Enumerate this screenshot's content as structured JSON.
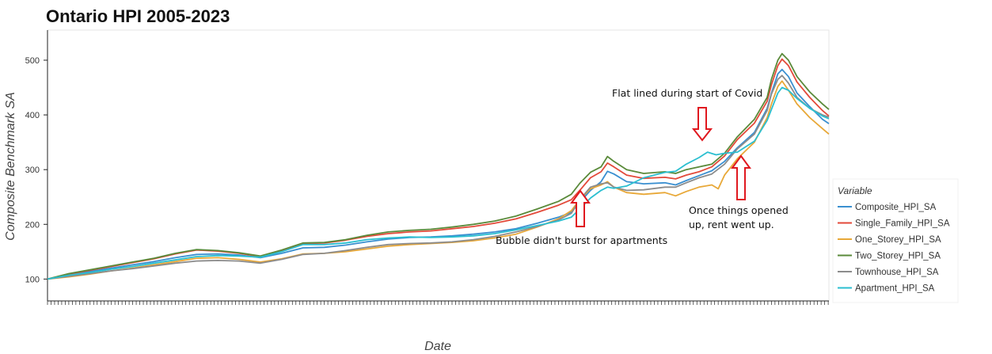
{
  "chart_data": {
    "type": "line",
    "title": "Ontario HPI 2005-2023",
    "xlabel": "Date",
    "ylabel": "Composite Benchmark SA",
    "xlim": [
      2005.0,
      2023.35
    ],
    "ylim": [
      60,
      555
    ],
    "yticks": [
      100,
      200,
      300,
      400,
      500
    ],
    "grid": false,
    "legend": {
      "title": "Variable",
      "placement": "right"
    },
    "series": [
      {
        "name": "Composite_HPI_SA",
        "color": "#3a8fd0",
        "points": [
          [
            2005.0,
            100
          ],
          [
            2005.5,
            108
          ],
          [
            2006.0,
            114
          ],
          [
            2006.5,
            120
          ],
          [
            2007.0,
            126
          ],
          [
            2007.5,
            132
          ],
          [
            2008.0,
            139
          ],
          [
            2008.5,
            145
          ],
          [
            2009.0,
            146
          ],
          [
            2009.5,
            144
          ],
          [
            2010.0,
            139
          ],
          [
            2010.5,
            147
          ],
          [
            2011.0,
            157
          ],
          [
            2011.5,
            158
          ],
          [
            2012.0,
            162
          ],
          [
            2012.5,
            168
          ],
          [
            2013.0,
            173
          ],
          [
            2013.5,
            176
          ],
          [
            2014.0,
            177
          ],
          [
            2014.5,
            179
          ],
          [
            2015.0,
            182
          ],
          [
            2015.5,
            186
          ],
          [
            2016.0,
            192
          ],
          [
            2016.5,
            202
          ],
          [
            2017.0,
            213
          ],
          [
            2017.3,
            222
          ],
          [
            2017.5,
            240
          ],
          [
            2017.75,
            262
          ],
          [
            2018.0,
            278
          ],
          [
            2018.15,
            297
          ],
          [
            2018.3,
            292
          ],
          [
            2018.6,
            278
          ],
          [
            2019.0,
            274
          ],
          [
            2019.5,
            276
          ],
          [
            2019.75,
            272
          ],
          [
            2020.0,
            280
          ],
          [
            2020.3,
            289
          ],
          [
            2020.6,
            298
          ],
          [
            2020.9,
            315
          ],
          [
            2021.2,
            340
          ],
          [
            2021.6,
            368
          ],
          [
            2021.9,
            412
          ],
          [
            2022.0,
            440
          ],
          [
            2022.15,
            475
          ],
          [
            2022.25,
            483
          ],
          [
            2022.4,
            470
          ],
          [
            2022.6,
            440
          ],
          [
            2022.9,
            415
          ],
          [
            2023.2,
            392
          ],
          [
            2023.35,
            384
          ]
        ]
      },
      {
        "name": "Single_Family_HPI_SA",
        "color": "#e34a3a",
        "points": [
          [
            2005.0,
            100
          ],
          [
            2005.5,
            109
          ],
          [
            2006.0,
            116
          ],
          [
            2006.5,
            123
          ],
          [
            2007.0,
            130
          ],
          [
            2007.5,
            137
          ],
          [
            2008.0,
            146
          ],
          [
            2008.5,
            153
          ],
          [
            2009.0,
            151
          ],
          [
            2009.5,
            147
          ],
          [
            2010.0,
            141
          ],
          [
            2010.5,
            152
          ],
          [
            2011.0,
            165
          ],
          [
            2011.5,
            166
          ],
          [
            2012.0,
            171
          ],
          [
            2012.5,
            178
          ],
          [
            2013.0,
            183
          ],
          [
            2013.5,
            186
          ],
          [
            2014.0,
            188
          ],
          [
            2014.5,
            192
          ],
          [
            2015.0,
            196
          ],
          [
            2015.5,
            202
          ],
          [
            2016.0,
            210
          ],
          [
            2016.5,
            222
          ],
          [
            2017.0,
            235
          ],
          [
            2017.3,
            245
          ],
          [
            2017.5,
            262
          ],
          [
            2017.75,
            285
          ],
          [
            2018.0,
            296
          ],
          [
            2018.15,
            312
          ],
          [
            2018.3,
            305
          ],
          [
            2018.6,
            290
          ],
          [
            2019.0,
            284
          ],
          [
            2019.5,
            286
          ],
          [
            2019.75,
            283
          ],
          [
            2020.0,
            290
          ],
          [
            2020.3,
            296
          ],
          [
            2020.6,
            305
          ],
          [
            2020.9,
            325
          ],
          [
            2021.2,
            355
          ],
          [
            2021.6,
            385
          ],
          [
            2021.9,
            425
          ],
          [
            2022.0,
            455
          ],
          [
            2022.15,
            490
          ],
          [
            2022.25,
            502
          ],
          [
            2022.4,
            490
          ],
          [
            2022.6,
            460
          ],
          [
            2022.9,
            432
          ],
          [
            2023.2,
            408
          ],
          [
            2023.35,
            398
          ]
        ]
      },
      {
        "name": "One_Storey_HPI_SA",
        "color": "#e8a838",
        "points": [
          [
            2005.0,
            100
          ],
          [
            2005.5,
            104
          ],
          [
            2006.0,
            109
          ],
          [
            2006.5,
            115
          ],
          [
            2007.0,
            120
          ],
          [
            2007.5,
            126
          ],
          [
            2008.0,
            132
          ],
          [
            2008.5,
            138
          ],
          [
            2009.0,
            139
          ],
          [
            2009.5,
            136
          ],
          [
            2010.0,
            131
          ],
          [
            2010.5,
            137
          ],
          [
            2011.0,
            146
          ],
          [
            2011.5,
            147
          ],
          [
            2012.0,
            150
          ],
          [
            2012.5,
            155
          ],
          [
            2013.0,
            160
          ],
          [
            2013.5,
            163
          ],
          [
            2014.0,
            165
          ],
          [
            2014.5,
            167
          ],
          [
            2015.0,
            170
          ],
          [
            2015.5,
            175
          ],
          [
            2016.0,
            182
          ],
          [
            2016.5,
            195
          ],
          [
            2017.0,
            210
          ],
          [
            2017.3,
            225
          ],
          [
            2017.5,
            245
          ],
          [
            2017.75,
            265
          ],
          [
            2018.0,
            272
          ],
          [
            2018.15,
            278
          ],
          [
            2018.3,
            268
          ],
          [
            2018.6,
            258
          ],
          [
            2019.0,
            255
          ],
          [
            2019.5,
            258
          ],
          [
            2019.75,
            252
          ],
          [
            2020.0,
            260
          ],
          [
            2020.3,
            268
          ],
          [
            2020.6,
            272
          ],
          [
            2020.75,
            265
          ],
          [
            2020.9,
            290
          ],
          [
            2021.2,
            320
          ],
          [
            2021.6,
            350
          ],
          [
            2021.9,
            395
          ],
          [
            2022.0,
            420
          ],
          [
            2022.15,
            452
          ],
          [
            2022.25,
            462
          ],
          [
            2022.4,
            445
          ],
          [
            2022.6,
            420
          ],
          [
            2022.9,
            395
          ],
          [
            2023.2,
            375
          ],
          [
            2023.35,
            365
          ]
        ]
      },
      {
        "name": "Two_Storey_HPI_SA",
        "color": "#5a8a3a",
        "points": [
          [
            2005.0,
            100
          ],
          [
            2005.5,
            110
          ],
          [
            2006.0,
            117
          ],
          [
            2006.5,
            124
          ],
          [
            2007.0,
            131
          ],
          [
            2007.5,
            138
          ],
          [
            2008.0,
            147
          ],
          [
            2008.5,
            154
          ],
          [
            2009.0,
            152
          ],
          [
            2009.5,
            148
          ],
          [
            2010.0,
            142
          ],
          [
            2010.5,
            153
          ],
          [
            2011.0,
            166
          ],
          [
            2011.5,
            167
          ],
          [
            2012.0,
            172
          ],
          [
            2012.5,
            180
          ],
          [
            2013.0,
            186
          ],
          [
            2013.5,
            189
          ],
          [
            2014.0,
            191
          ],
          [
            2014.5,
            195
          ],
          [
            2015.0,
            200
          ],
          [
            2015.5,
            206
          ],
          [
            2016.0,
            215
          ],
          [
            2016.5,
            228
          ],
          [
            2017.0,
            242
          ],
          [
            2017.3,
            255
          ],
          [
            2017.5,
            275
          ],
          [
            2017.75,
            295
          ],
          [
            2018.0,
            305
          ],
          [
            2018.15,
            324
          ],
          [
            2018.3,
            315
          ],
          [
            2018.6,
            300
          ],
          [
            2019.0,
            293
          ],
          [
            2019.5,
            296
          ],
          [
            2019.75,
            293
          ],
          [
            2020.0,
            300
          ],
          [
            2020.3,
            305
          ],
          [
            2020.6,
            310
          ],
          [
            2020.9,
            330
          ],
          [
            2021.2,
            360
          ],
          [
            2021.6,
            392
          ],
          [
            2021.9,
            432
          ],
          [
            2022.0,
            465
          ],
          [
            2022.15,
            500
          ],
          [
            2022.25,
            512
          ],
          [
            2022.4,
            500
          ],
          [
            2022.6,
            470
          ],
          [
            2022.9,
            442
          ],
          [
            2023.2,
            420
          ],
          [
            2023.35,
            410
          ]
        ]
      },
      {
        "name": "Townhouse_HPI_SA",
        "color": "#8c8c8c",
        "points": [
          [
            2005.0,
            100
          ],
          [
            2005.5,
            105
          ],
          [
            2006.0,
            110
          ],
          [
            2006.5,
            115
          ],
          [
            2007.0,
            119
          ],
          [
            2007.5,
            124
          ],
          [
            2008.0,
            129
          ],
          [
            2008.5,
            133
          ],
          [
            2009.0,
            134
          ],
          [
            2009.5,
            133
          ],
          [
            2010.0,
            129
          ],
          [
            2010.5,
            136
          ],
          [
            2011.0,
            145
          ],
          [
            2011.5,
            147
          ],
          [
            2012.0,
            152
          ],
          [
            2012.5,
            158
          ],
          [
            2013.0,
            163
          ],
          [
            2013.5,
            165
          ],
          [
            2014.0,
            166
          ],
          [
            2014.5,
            168
          ],
          [
            2015.0,
            172
          ],
          [
            2015.5,
            178
          ],
          [
            2016.0,
            186
          ],
          [
            2016.5,
            196
          ],
          [
            2017.0,
            208
          ],
          [
            2017.3,
            220
          ],
          [
            2017.5,
            245
          ],
          [
            2017.75,
            268
          ],
          [
            2018.0,
            274
          ],
          [
            2018.15,
            276
          ],
          [
            2018.3,
            268
          ],
          [
            2018.6,
            262
          ],
          [
            2019.0,
            263
          ],
          [
            2019.5,
            268
          ],
          [
            2019.75,
            268
          ],
          [
            2020.0,
            276
          ],
          [
            2020.3,
            285
          ],
          [
            2020.6,
            292
          ],
          [
            2020.9,
            310
          ],
          [
            2021.2,
            338
          ],
          [
            2021.6,
            365
          ],
          [
            2021.9,
            408
          ],
          [
            2022.0,
            438
          ],
          [
            2022.15,
            465
          ],
          [
            2022.25,
            472
          ],
          [
            2022.4,
            458
          ],
          [
            2022.6,
            432
          ],
          [
            2022.9,
            412
          ],
          [
            2023.2,
            400
          ],
          [
            2023.35,
            396
          ]
        ]
      },
      {
        "name": "Apartment_HPI_SA",
        "color": "#2bbfd0",
        "points": [
          [
            2005.0,
            100
          ],
          [
            2005.5,
            107
          ],
          [
            2006.0,
            112
          ],
          [
            2006.5,
            118
          ],
          [
            2007.0,
            123
          ],
          [
            2007.5,
            129
          ],
          [
            2008.0,
            135
          ],
          [
            2008.5,
            141
          ],
          [
            2009.0,
            143
          ],
          [
            2009.5,
            142
          ],
          [
            2010.0,
            140
          ],
          [
            2010.5,
            150
          ],
          [
            2011.0,
            163
          ],
          [
            2011.5,
            163
          ],
          [
            2012.0,
            166
          ],
          [
            2012.5,
            172
          ],
          [
            2013.0,
            175
          ],
          [
            2013.5,
            177
          ],
          [
            2014.0,
            176
          ],
          [
            2014.5,
            177
          ],
          [
            2015.0,
            179
          ],
          [
            2015.5,
            183
          ],
          [
            2016.0,
            190
          ],
          [
            2016.5,
            198
          ],
          [
            2017.0,
            206
          ],
          [
            2017.3,
            213
          ],
          [
            2017.5,
            228
          ],
          [
            2017.75,
            248
          ],
          [
            2018.0,
            262
          ],
          [
            2018.15,
            268
          ],
          [
            2018.3,
            266
          ],
          [
            2018.6,
            270
          ],
          [
            2019.0,
            285
          ],
          [
            2019.5,
            295
          ],
          [
            2019.75,
            297
          ],
          [
            2020.0,
            310
          ],
          [
            2020.3,
            322
          ],
          [
            2020.5,
            332
          ],
          [
            2020.7,
            327
          ],
          [
            2020.9,
            330
          ],
          [
            2021.2,
            332
          ],
          [
            2021.6,
            352
          ],
          [
            2021.9,
            390
          ],
          [
            2022.0,
            410
          ],
          [
            2022.15,
            440
          ],
          [
            2022.25,
            450
          ],
          [
            2022.4,
            445
          ],
          [
            2022.6,
            430
          ],
          [
            2022.9,
            412
          ],
          [
            2023.2,
            398
          ],
          [
            2023.35,
            393
          ]
        ]
      }
    ],
    "annotations": [
      {
        "text": "Flat lined during start of Covid"
      },
      {
        "text": "Bubble didn't burst for apartments"
      },
      {
        "lines": [
          "Once things opened",
          "up, rent went up."
        ]
      }
    ]
  }
}
